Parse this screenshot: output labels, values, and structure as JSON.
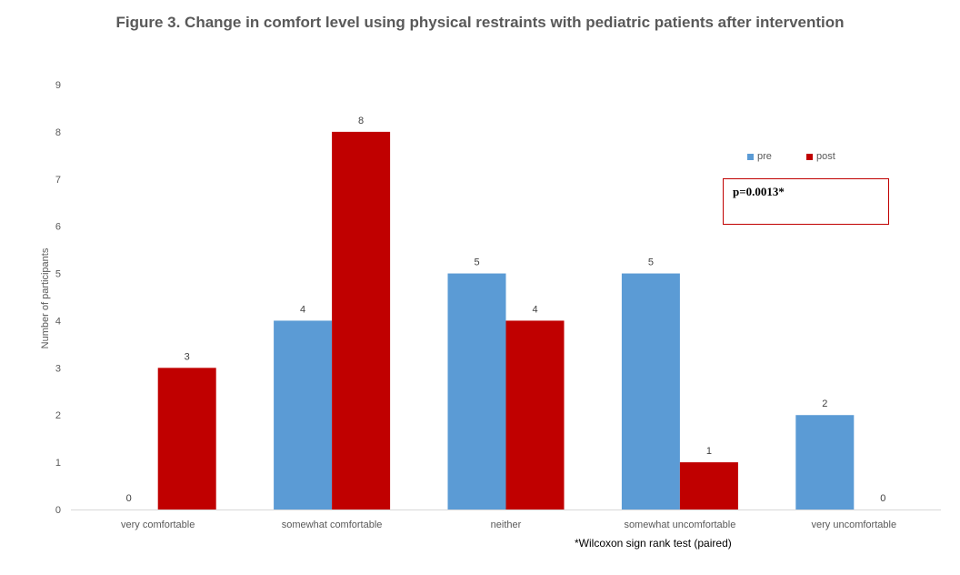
{
  "chart_data": {
    "type": "bar",
    "title": "Figure 3. Change in comfort level using physical restraints with pediatric patients after intervention",
    "xlabel": "",
    "ylabel": "Number of participants",
    "ylim": [
      0,
      9
    ],
    "yticks": [
      0,
      1,
      2,
      3,
      4,
      5,
      6,
      7,
      8,
      9
    ],
    "categories": [
      "very comfortable",
      "somewhat comfortable",
      "neither",
      "somewhat uncomfortable",
      "very uncomfortable"
    ],
    "series": [
      {
        "name": "pre",
        "color": "#5b9bd5",
        "values": [
          0,
          4,
          5,
          5,
          2
        ]
      },
      {
        "name": "post",
        "color": "#c00000",
        "values": [
          3,
          8,
          4,
          1,
          0
        ]
      }
    ],
    "grid": false,
    "legend_position": "top-right",
    "annotation": "p=0.0013*",
    "footnote": "*Wilcoxon sign rank test (paired)"
  }
}
